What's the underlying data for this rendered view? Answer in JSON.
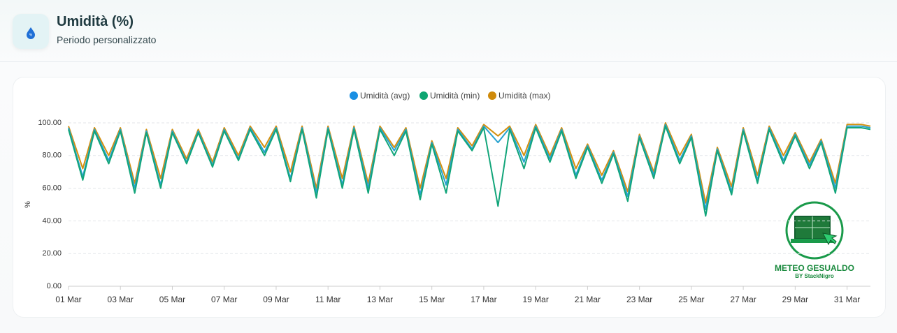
{
  "header": {
    "title": "Umidità (%)",
    "subtitle": "Periodo personalizzato"
  },
  "chart_data": {
    "type": "line",
    "y_label": "%",
    "x": [
      1,
      1.55,
      2,
      2.55,
      3,
      3.55,
      4,
      4.55,
      5,
      5.55,
      6,
      6.55,
      7,
      7.55,
      8,
      8.55,
      9,
      9.55,
      10,
      10.55,
      11,
      11.55,
      12,
      12.55,
      13,
      13.55,
      14,
      14.55,
      15,
      15.55,
      16,
      16.55,
      17,
      17.55,
      18,
      18.55,
      19,
      19.55,
      20,
      20.55,
      21,
      21.55,
      22,
      22.55,
      23,
      23.55,
      24,
      24.55,
      25,
      25.55,
      26,
      26.55,
      27,
      27.55,
      28,
      28.55,
      29,
      29.55,
      30,
      30.55,
      31,
      31.55,
      31.9
    ],
    "series": [
      {
        "name": "Umidità (avg)",
        "color": "#27a2cf",
        "legend_color": "#1a8fe3",
        "values": [
          97,
          67,
          96,
          77,
          96,
          60,
          95,
          62,
          95,
          76,
          95,
          74,
          96,
          78,
          97,
          82,
          97,
          66,
          97,
          57,
          97,
          62,
          97,
          60,
          97,
          83,
          96,
          56,
          88,
          62,
          96,
          84,
          98,
          88,
          97,
          76,
          98,
          78,
          96,
          68,
          86,
          65,
          82,
          55,
          92,
          68,
          99,
          77,
          92,
          47,
          84,
          58,
          96,
          65,
          97,
          77,
          93,
          74,
          89,
          60,
          98,
          98,
          97
        ]
      },
      {
        "name": "Umidità (min)",
        "color": "#12a57a",
        "legend_color": "#0ea672",
        "values": [
          96,
          65,
          95,
          75,
          95,
          57,
          94,
          60,
          94,
          75,
          94,
          73,
          95,
          77,
          96,
          80,
          96,
          64,
          96,
          54,
          96,
          60,
          96,
          57,
          96,
          80,
          95,
          53,
          87,
          57,
          95,
          83,
          97,
          49,
          96,
          72,
          97,
          76,
          95,
          66,
          85,
          63,
          81,
          52,
          91,
          66,
          98,
          75,
          91,
          43,
          83,
          56,
          95,
          63,
          96,
          75,
          92,
          72,
          88,
          57,
          97,
          97,
          96
        ]
      },
      {
        "name": "Umidità (max)",
        "color": "#d4900f",
        "legend_color": "#cf8a0a",
        "values": [
          98,
          72,
          97,
          80,
          97,
          63,
          96,
          66,
          96,
          78,
          96,
          76,
          97,
          80,
          98,
          85,
          98,
          70,
          98,
          60,
          98,
          66,
          98,
          63,
          98,
          85,
          97,
          60,
          89,
          66,
          97,
          86,
          99,
          92,
          98,
          80,
          99,
          80,
          97,
          72,
          87,
          68,
          83,
          58,
          93,
          70,
          100,
          80,
          93,
          51,
          85,
          61,
          97,
          68,
          98,
          80,
          94,
          76,
          90,
          63,
          99,
          99,
          98
        ]
      }
    ],
    "xlim": [
      1,
      31.9
    ],
    "xticks": [
      {
        "value": 1,
        "label": "01 Mar"
      },
      {
        "value": 3,
        "label": "03 Mar"
      },
      {
        "value": 5,
        "label": "05 Mar"
      },
      {
        "value": 7,
        "label": "07 Mar"
      },
      {
        "value": 9,
        "label": "09 Mar"
      },
      {
        "value": 11,
        "label": "11 Mar"
      },
      {
        "value": 13,
        "label": "13 Mar"
      },
      {
        "value": 15,
        "label": "15 Mar"
      },
      {
        "value": 17,
        "label": "17 Mar"
      },
      {
        "value": 19,
        "label": "19 Mar"
      },
      {
        "value": 21,
        "label": "21 Mar"
      },
      {
        "value": 23,
        "label": "23 Mar"
      },
      {
        "value": 25,
        "label": "25 Mar"
      },
      {
        "value": 27,
        "label": "27 Mar"
      },
      {
        "value": 29,
        "label": "29 Mar"
      },
      {
        "value": 31,
        "label": "31 Mar"
      }
    ],
    "ylim": [
      0,
      100
    ],
    "yticks": [
      {
        "value": 0,
        "label": "0.00"
      },
      {
        "value": 20,
        "label": "20.00"
      },
      {
        "value": 40,
        "label": "40.00"
      },
      {
        "value": 60,
        "label": "60.00"
      },
      {
        "value": 80,
        "label": "80.00"
      },
      {
        "value": 100,
        "label": "100.00"
      }
    ],
    "grid": true,
    "legend": "top"
  },
  "watermark": {
    "title": "METEO GESUALDO",
    "subtitle": "BY StackNigro"
  }
}
